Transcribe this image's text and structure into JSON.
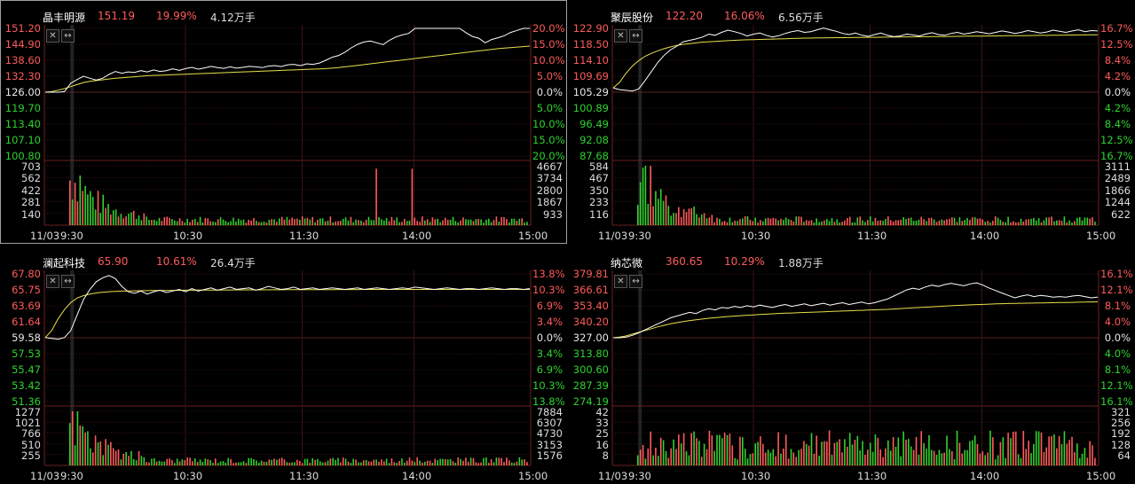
{
  "top_tabs": [
    "",
    "",
    "",
    ""
  ],
  "panels": [
    {
      "id": "p1",
      "name": "晶丰明源",
      "price": "151.19",
      "pct": "19.99%",
      "volume": "4.12万手",
      "left_labels": [
        "151.20",
        "144.90",
        "138.60",
        "132.30",
        "126.00",
        "119.70",
        "113.40",
        "107.10",
        "100.80"
      ],
      "right_labels": [
        "20.0%",
        "15.0%",
        "10.0%",
        "5.0%",
        "0.0%",
        "5.0%",
        "10.0%",
        "15.0%",
        "20.0%"
      ],
      "vol_left": [
        "703",
        "562",
        "422",
        "281",
        "140"
      ],
      "vol_right": [
        "4667",
        "3734",
        "2800",
        "1867",
        "933"
      ],
      "time_labels": [
        "11/03",
        "9:30",
        "10:30",
        "11:30",
        "14:00",
        "15:00"
      ],
      "chart_data": {
        "type": "line",
        "prev_close": 126.0,
        "ylim": [
          100.8,
          151.2
        ],
        "price_series": [
          126.0,
          126.0,
          126.0,
          126.2,
          129.5,
          131.0,
          132.3,
          131.5,
          130.8,
          131.5,
          133.0,
          134.2,
          133.5,
          134.0,
          133.8,
          134.5,
          134.0,
          134.8,
          134.2,
          134.5,
          135.2,
          134.6,
          135.3,
          135.8,
          135.1,
          135.6,
          136.2,
          135.7,
          135.4,
          136.0,
          135.5,
          135.8,
          136.2,
          136.0,
          135.7,
          136.3,
          136.5,
          136.1,
          136.8,
          137.0,
          136.5,
          137.2,
          137.0,
          137.5,
          138.6,
          139.8,
          140.5,
          141.8,
          143.5,
          144.9,
          145.8,
          146.2,
          145.5,
          144.8,
          146.5,
          147.8,
          148.6,
          149.2,
          151.2,
          151.2,
          151.2,
          151.2,
          151.2,
          151.2,
          151.2,
          151.2,
          149.5,
          148.0,
          147.3,
          145.5,
          146.8,
          147.5,
          148.3,
          149.6,
          150.4,
          151.2,
          151.19
        ],
        "avg_series": [
          126.0,
          126.2,
          126.8,
          127.4,
          128.2,
          129.0,
          129.8,
          130.3,
          130.6,
          130.9,
          131.2,
          131.5,
          131.7,
          131.9,
          132.1,
          132.3,
          132.5,
          132.6,
          132.7,
          132.8,
          132.9,
          133.0,
          133.1,
          133.2,
          133.3,
          133.4,
          133.5,
          133.6,
          133.7,
          133.8,
          133.9,
          134.0,
          134.1,
          134.2,
          134.3,
          134.4,
          134.5,
          134.6,
          134.7,
          134.8,
          134.9,
          135.0,
          135.1,
          135.2,
          135.3,
          135.5,
          135.7,
          136.0,
          136.3,
          136.6,
          136.9,
          137.2,
          137.5,
          137.8,
          138.1,
          138.4,
          138.7,
          139.0,
          139.3,
          139.6,
          139.9,
          140.2,
          140.5,
          140.8,
          141.1,
          141.4,
          141.7,
          142.0,
          142.3,
          142.6,
          142.9,
          143.2,
          143.4,
          143.6,
          143.8,
          144.0,
          144.2
        ],
        "volume_max": 703
      }
    },
    {
      "id": "p2",
      "name": "聚辰股份",
      "price": "122.20",
      "pct": "16.06%",
      "volume": "6.56万手",
      "left_labels": [
        "122.90",
        "118.50",
        "114.10",
        "109.69",
        "105.29",
        "100.89",
        "96.49",
        "92.08",
        "87.68"
      ],
      "right_labels": [
        "16.7%",
        "12.5%",
        "8.4%",
        "4.2%",
        "0.0%",
        "4.2%",
        "8.4%",
        "12.5%",
        "16.7%"
      ],
      "vol_left": [
        "584",
        "467",
        "350",
        "233",
        "116"
      ],
      "vol_right": [
        "3111",
        "2489",
        "1866",
        "1244",
        "622"
      ],
      "time_labels": [
        "11/03",
        "9:30",
        "10:30",
        "11:30",
        "14:00",
        "15:00"
      ],
      "chart_data": {
        "type": "line",
        "prev_close": 105.29,
        "ylim": [
          87.68,
          122.9
        ],
        "price_series": [
          106.5,
          106.0,
          105.8,
          105.6,
          106.2,
          108.5,
          111.0,
          113.5,
          115.5,
          117.0,
          118.0,
          119.2,
          119.6,
          120.0,
          120.5,
          121.3,
          121.0,
          121.8,
          122.4,
          122.0,
          121.5,
          120.8,
          121.3,
          121.6,
          121.0,
          120.5,
          120.9,
          121.5,
          122.0,
          122.3,
          121.8,
          122.0,
          122.5,
          123.0,
          122.5,
          122.1,
          121.5,
          121.2,
          121.6,
          121.0,
          120.7,
          121.2,
          121.6,
          121.0,
          120.6,
          120.8,
          121.3,
          121.1,
          120.8,
          121.3,
          121.7,
          121.2,
          121.0,
          121.5,
          121.8,
          121.3,
          121.6,
          122.0,
          121.7,
          121.4,
          121.8,
          122.2,
          121.9,
          121.5,
          121.8,
          122.3,
          122.0,
          121.6,
          121.9,
          122.4,
          122.1,
          121.8,
          122.2,
          122.5,
          122.0,
          122.3,
          122.2
        ],
        "avg_series": [
          106.5,
          108.0,
          110.5,
          112.5,
          114.0,
          115.2,
          116.0,
          116.7,
          117.3,
          117.8,
          118.2,
          118.5,
          118.7,
          118.9,
          119.1,
          119.2,
          119.3,
          119.4,
          119.5,
          119.6,
          119.7,
          119.75,
          119.8,
          119.85,
          119.9,
          119.95,
          120.0,
          120.05,
          120.1,
          120.15,
          120.2,
          120.22,
          120.25,
          120.28,
          120.3,
          120.32,
          120.34,
          120.36,
          120.38,
          120.4,
          120.42,
          120.44,
          120.46,
          120.48,
          120.5,
          120.52,
          120.54,
          120.56,
          120.58,
          120.6,
          120.62,
          120.64,
          120.66,
          120.68,
          120.7,
          120.72,
          120.74,
          120.76,
          120.78,
          120.8,
          120.82,
          120.84,
          120.86,
          120.88,
          120.9,
          120.92,
          120.94,
          120.96,
          120.98,
          121.0,
          121.02,
          121.04,
          121.06,
          121.08,
          121.1,
          121.12,
          121.14
        ],
        "volume_max": 584
      }
    },
    {
      "id": "p3",
      "name": "澜起科技",
      "price": "65.90",
      "pct": "10.61%",
      "volume": "26.4万手",
      "left_labels": [
        "67.80",
        "65.75",
        "63.69",
        "61.64",
        "59.58",
        "57.53",
        "55.47",
        "53.42",
        "51.36"
      ],
      "right_labels": [
        "13.8%",
        "10.3%",
        "6.9%",
        "3.4%",
        "0.0%",
        "3.4%",
        "6.9%",
        "10.3%",
        "13.8%"
      ],
      "vol_left": [
        "1277",
        "1021",
        "766",
        "510",
        "255"
      ],
      "vol_right": [
        "7884",
        "6307",
        "4730",
        "3153",
        "1576"
      ],
      "time_labels": [
        "11/03",
        "9:30",
        "10:30",
        "11:30",
        "14:00",
        "15:00"
      ],
      "chart_data": {
        "type": "line",
        "prev_close": 59.58,
        "ylim": [
          51.36,
          67.8
        ],
        "price_series": [
          59.6,
          59.5,
          59.4,
          59.6,
          60.5,
          62.5,
          64.5,
          65.8,
          66.8,
          67.3,
          67.6,
          67.2,
          66.2,
          65.5,
          65.3,
          65.6,
          65.2,
          65.5,
          65.7,
          65.4,
          65.6,
          65.8,
          65.5,
          65.9,
          65.6,
          65.8,
          66.0,
          65.7,
          65.9,
          66.1,
          65.8,
          65.9,
          66.0,
          65.7,
          65.9,
          66.2,
          66.0,
          65.8,
          65.9,
          66.1,
          65.8,
          65.9,
          66.0,
          65.8,
          65.9,
          66.0,
          65.9,
          65.8,
          65.9,
          66.0,
          65.8,
          65.9,
          66.0,
          65.9,
          65.8,
          65.9,
          66.0,
          65.9,
          66.1,
          66.0,
          65.9,
          65.8,
          65.9,
          66.0,
          65.9,
          65.8,
          65.9,
          65.9,
          65.8,
          65.9,
          66.0,
          65.9,
          65.8,
          65.9,
          65.9,
          65.8,
          65.9
        ],
        "avg_series": [
          59.6,
          60.5,
          62.0,
          63.2,
          64.1,
          64.7,
          65.0,
          65.2,
          65.35,
          65.45,
          65.5,
          65.55,
          65.58,
          65.6,
          65.62,
          65.63,
          65.64,
          65.65,
          65.66,
          65.67,
          65.68,
          65.69,
          65.7,
          65.7,
          65.71,
          65.71,
          65.72,
          65.72,
          65.73,
          65.73,
          65.74,
          65.74,
          65.75,
          65.75,
          65.75,
          65.76,
          65.76,
          65.76,
          65.77,
          65.77,
          65.77,
          65.77,
          65.78,
          65.78,
          65.78,
          65.78,
          65.79,
          65.79,
          65.79,
          65.79,
          65.8,
          65.8,
          65.8,
          65.8,
          65.8,
          65.8,
          65.8,
          65.8,
          65.8,
          65.8,
          65.8,
          65.8,
          65.8,
          65.8,
          65.8,
          65.8,
          65.8,
          65.8,
          65.8,
          65.8,
          65.8,
          65.8,
          65.8,
          65.8,
          65.8,
          65.8,
          65.8
        ],
        "volume_max": 1277
      }
    },
    {
      "id": "p4",
      "name": "纳芯微",
      "price": "360.65",
      "pct": "10.29%",
      "volume": "1.88万手",
      "left_labels": [
        "379.81",
        "366.61",
        "353.40",
        "340.20",
        "327.00",
        "313.80",
        "300.60",
        "287.39",
        "274.19"
      ],
      "right_labels": [
        "16.1%",
        "12.1%",
        "8.1%",
        "4.0%",
        "0.0%",
        "4.0%",
        "8.1%",
        "12.1%",
        "16.1%"
      ],
      "vol_left": [
        "42",
        "33",
        "25",
        "16",
        "8"
      ],
      "vol_right": [
        "321",
        "256",
        "192",
        "128",
        "64"
      ],
      "time_labels": [
        "11/03",
        "9:30",
        "10:30",
        "11:30",
        "14:00",
        "15:00"
      ],
      "chart_data": {
        "type": "line",
        "prev_close": 327.0,
        "ylim": [
          274.19,
          379.81
        ],
        "price_series": [
          327.0,
          327.0,
          327.5,
          329.0,
          331.0,
          333.5,
          336.0,
          338.5,
          341.0,
          343.5,
          345.0,
          346.5,
          348.0,
          347.0,
          349.5,
          351.0,
          350.0,
          352.0,
          351.5,
          353.0,
          352.0,
          353.5,
          352.5,
          354.0,
          353.0,
          352.0,
          353.5,
          354.5,
          353.0,
          354.0,
          355.0,
          353.5,
          354.5,
          355.5,
          354.0,
          355.0,
          356.0,
          354.5,
          355.5,
          356.5,
          355.0,
          356.0,
          357.5,
          359.0,
          361.5,
          364.0,
          366.5,
          368.0,
          367.0,
          369.0,
          370.5,
          369.5,
          371.0,
          372.0,
          371.0,
          370.0,
          371.5,
          372.5,
          370.5,
          368.0,
          366.0,
          364.0,
          362.0,
          360.0,
          361.5,
          362.5,
          361.0,
          362.0,
          361.5,
          360.5,
          361.0,
          360.5,
          361.5,
          362.0,
          361.0,
          360.0,
          360.65
        ],
        "avg_series": [
          327.0,
          327.5,
          328.5,
          330.0,
          331.5,
          333.0,
          334.5,
          336.0,
          337.3,
          338.5,
          339.5,
          340.4,
          341.2,
          341.9,
          342.5,
          343.1,
          343.6,
          344.1,
          344.5,
          344.9,
          345.3,
          345.6,
          345.9,
          346.2,
          346.5,
          346.8,
          347.1,
          347.3,
          347.5,
          347.7,
          347.9,
          348.1,
          348.3,
          348.5,
          348.7,
          348.9,
          349.1,
          349.3,
          349.5,
          349.7,
          349.9,
          350.1,
          350.3,
          350.5,
          350.8,
          351.1,
          351.4,
          351.7,
          352.0,
          352.3,
          352.6,
          352.9,
          353.2,
          353.5,
          353.8,
          354.0,
          354.2,
          354.4,
          354.6,
          354.8,
          355.0,
          355.2,
          355.3,
          355.4,
          355.5,
          355.6,
          355.7,
          355.8,
          355.9,
          356.0,
          356.1,
          356.2,
          356.3,
          356.4,
          356.5,
          356.6,
          356.7
        ],
        "volume_max": 42
      }
    }
  ]
}
